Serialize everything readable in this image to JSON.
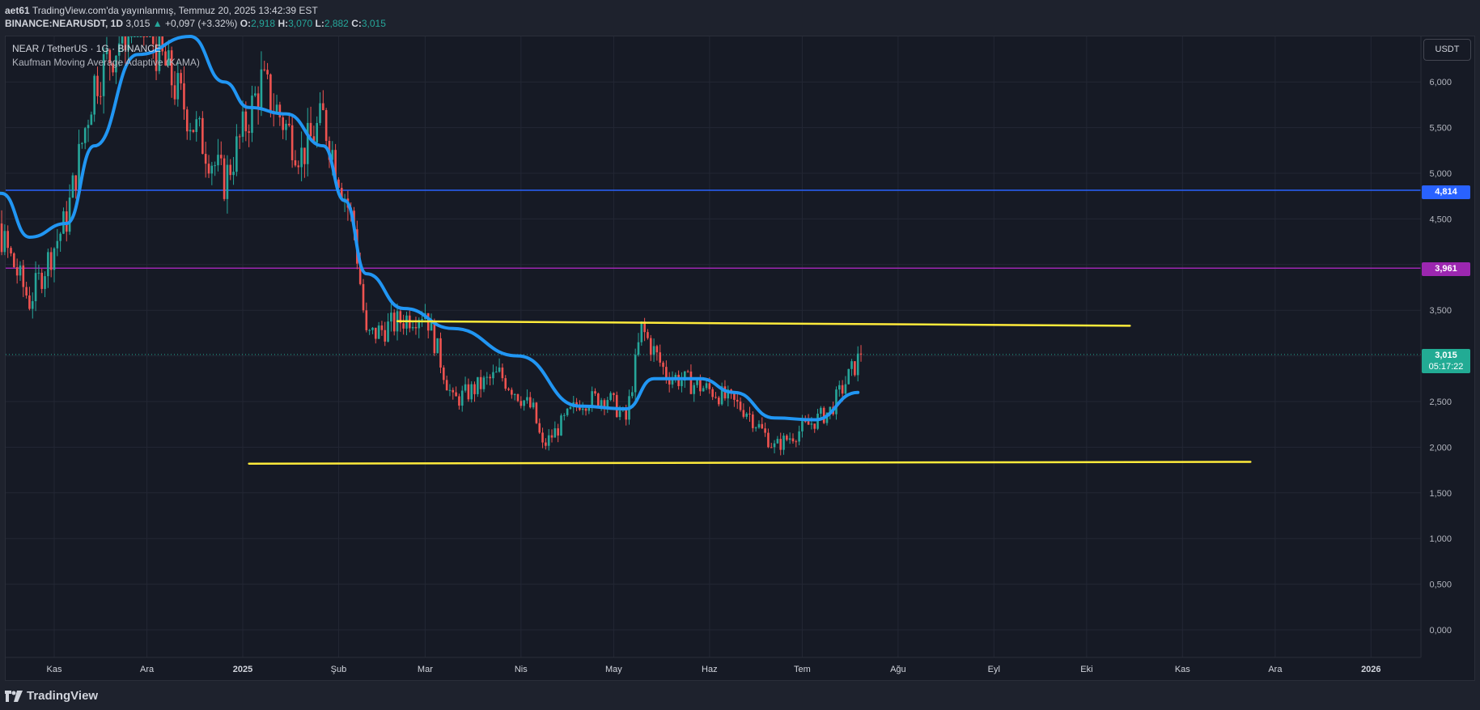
{
  "header": {
    "author": "aet61",
    "published_text": "TradingView.com'da yayınlanmış, Temmuz 20, 2025 13:42:39 EST",
    "symbol": "BINANCE:NEARUSDT, 1D",
    "last": "3,015",
    "change_arrow": "▲",
    "change": "+0,097 (+3.32%)",
    "open_label": "O:",
    "open": "2,918",
    "high_label": "H:",
    "high": "3,070",
    "low_label": "L:",
    "low": "2,882",
    "close_label": "C:",
    "close": "3,015"
  },
  "legend": {
    "title": "NEAR / TetherUS · 1G · BINANCE",
    "indicator": "Kaufman Moving Average Adaptive (KAMA)"
  },
  "price_scale": {
    "currency": "USDT",
    "labels": [
      "6,000",
      "5,500",
      "5,000",
      "4,500",
      "3,500",
      "2,500",
      "2,000",
      "1,500",
      "1,000",
      "0,500",
      "0,000"
    ],
    "blue_line_price": "4,814",
    "purple_line_price": "3,961",
    "last_price": "3,015",
    "countdown": "05:17:22"
  },
  "time_scale": {
    "labels": [
      "Kas",
      "Ara",
      "2025",
      "Şub",
      "Mar",
      "Nis",
      "May",
      "Haz",
      "Tem",
      "Ağu",
      "Eyl",
      "Eki",
      "Kas",
      "Ara",
      "2026"
    ]
  },
  "colors": {
    "background": "#161a25",
    "up": "#26a69a",
    "down": "#ef5350",
    "kama": "#2196f3",
    "blue_line": "#2962ff",
    "purple_line": "#9c27b0",
    "yellow_line": "#ffeb3b"
  },
  "footer": {
    "brand": "TradingView",
    "logo_icon": "tradingview-logo-icon"
  },
  "chart_data": {
    "type": "candlestick",
    "symbol": "NEARUSDT",
    "interval": "1D",
    "ylim": [
      0,
      6.4
    ],
    "horizontal_levels": [
      {
        "price": 4.814,
        "color": "#2962ff"
      },
      {
        "price": 3.961,
        "color": "#9c27b0"
      }
    ],
    "trendlines": [
      {
        "from": {
          "date": "2025-02-20",
          "price": 3.38
        },
        "to": {
          "date": "2025-10-15",
          "price": 3.33
        },
        "color": "#ffeb3b"
      },
      {
        "from": {
          "date": "2025-01-03",
          "price": 1.82
        },
        "to": {
          "date": "2025-11-23",
          "price": 1.84
        },
        "color": "#ffeb3b"
      }
    ],
    "kama_series": [
      {
        "date": "2024-10-01",
        "value": 4.95
      },
      {
        "date": "2024-10-15",
        "value": 4.78
      },
      {
        "date": "2024-10-24",
        "value": 4.3
      },
      {
        "date": "2024-11-05",
        "value": 4.45
      },
      {
        "date": "2024-11-14",
        "value": 5.3
      },
      {
        "date": "2024-11-28",
        "value": 6.3
      },
      {
        "date": "2024-12-15",
        "value": 6.8
      },
      {
        "date": "2024-12-26",
        "value": 6.0
      },
      {
        "date": "2025-01-03",
        "value": 5.72
      },
      {
        "date": "2025-01-15",
        "value": 5.65
      },
      {
        "date": "2025-01-27",
        "value": 5.3
      },
      {
        "date": "2025-02-03",
        "value": 4.7
      },
      {
        "date": "2025-02-10",
        "value": 3.9
      },
      {
        "date": "2025-02-22",
        "value": 3.52
      },
      {
        "date": "2025-03-10",
        "value": 3.3
      },
      {
        "date": "2025-03-31",
        "value": 3.0
      },
      {
        "date": "2025-04-20",
        "value": 2.45
      },
      {
        "date": "2025-05-05",
        "value": 2.42
      },
      {
        "date": "2025-05-14",
        "value": 2.75
      },
      {
        "date": "2025-05-29",
        "value": 2.75
      },
      {
        "date": "2025-06-09",
        "value": 2.6
      },
      {
        "date": "2025-06-22",
        "value": 2.32
      },
      {
        "date": "2025-07-05",
        "value": 2.3
      },
      {
        "date": "2025-07-19",
        "value": 2.6
      }
    ],
    "candles_ohlc_anchor_path": [
      {
        "date": "2024-10-01",
        "close": 4.9
      },
      {
        "date": "2024-10-15",
        "close": 4.3
      },
      {
        "date": "2024-10-24",
        "close": 3.6
      },
      {
        "date": "2024-11-05",
        "close": 4.5
      },
      {
        "date": "2024-11-14",
        "close": 6.0
      },
      {
        "date": "2024-11-28",
        "close": 6.8
      },
      {
        "date": "2024-12-15",
        "close": 5.6
      },
      {
        "date": "2024-12-26",
        "close": 4.9
      },
      {
        "date": "2025-01-07",
        "close": 6.0
      },
      {
        "date": "2025-01-20",
        "close": 5.2
      },
      {
        "date": "2025-01-27",
        "close": 5.6
      },
      {
        "date": "2025-02-06",
        "close": 4.4
      },
      {
        "date": "2025-02-10",
        "close": 3.2
      },
      {
        "date": "2025-02-22",
        "close": 3.4
      },
      {
        "date": "2025-03-01",
        "close": 3.5
      },
      {
        "date": "2025-03-10",
        "close": 2.5
      },
      {
        "date": "2025-03-25",
        "close": 2.8
      },
      {
        "date": "2025-04-05",
        "close": 2.4
      },
      {
        "date": "2025-04-08",
        "close": 2.0
      },
      {
        "date": "2025-04-20",
        "close": 2.5
      },
      {
        "date": "2025-04-29",
        "close": 2.55
      },
      {
        "date": "2025-05-05",
        "close": 2.3
      },
      {
        "date": "2025-05-10",
        "close": 3.3
      },
      {
        "date": "2025-05-18",
        "close": 2.8
      },
      {
        "date": "2025-06-03",
        "close": 2.6
      },
      {
        "date": "2025-06-13",
        "close": 2.4
      },
      {
        "date": "2025-06-22",
        "close": 2.0
      },
      {
        "date": "2025-07-01",
        "close": 2.2
      },
      {
        "date": "2025-07-10",
        "close": 2.4
      },
      {
        "date": "2025-07-20",
        "close": 3.015
      }
    ]
  }
}
